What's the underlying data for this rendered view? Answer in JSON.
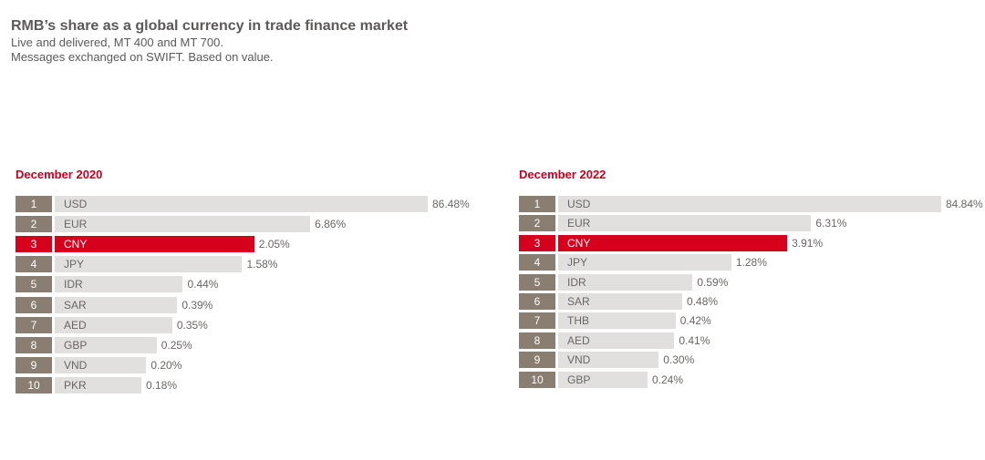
{
  "header": {
    "title": "RMB’s share as a global currency in trade finance market",
    "subtitle_line1": "Live and delivered, MT 400 and MT 700.",
    "subtitle_line2": "Messages exchanged on SWIFT. Based on value."
  },
  "colors": {
    "bar": "#e2e0df",
    "rank": "#8a7d72",
    "highlight": "#d7001c",
    "panel_title": "#c8001e",
    "text": "#6b6563"
  },
  "chart_data": [
    {
      "type": "bar",
      "orientation": "horizontal",
      "title": "December 2020",
      "highlight": "CNY",
      "ranks": [
        "1",
        "2",
        "3",
        "4",
        "5",
        "6",
        "7",
        "8",
        "9",
        "10"
      ],
      "categories": [
        "USD",
        "EUR",
        "CNY",
        "JPY",
        "IDR",
        "SAR",
        "AED",
        "GBP",
        "VND",
        "PKR"
      ],
      "values": [
        86.48,
        6.86,
        2.05,
        1.58,
        0.44,
        0.39,
        0.35,
        0.25,
        0.2,
        0.18
      ],
      "value_labels": [
        "86.48%",
        "6.86%",
        "2.05%",
        "1.58%",
        "0.44%",
        "0.39%",
        "0.35%",
        "0.25%",
        "0.20%",
        "0.18%"
      ]
    },
    {
      "type": "bar",
      "orientation": "horizontal",
      "title": "December 2022",
      "highlight": "CNY",
      "ranks": [
        "1",
        "2",
        "3",
        "4",
        "5",
        "6",
        "7",
        "8",
        "9",
        "10"
      ],
      "categories": [
        "USD",
        "EUR",
        "CNY",
        "JPY",
        "IDR",
        "SAR",
        "THB",
        "AED",
        "VND",
        "GBP"
      ],
      "values": [
        84.84,
        6.31,
        3.91,
        1.28,
        0.59,
        0.48,
        0.42,
        0.41,
        0.3,
        0.24
      ],
      "value_labels": [
        "84.84%",
        "6.31%",
        "3.91%",
        "1.28%",
        "0.59%",
        "0.48%",
        "0.42%",
        "0.41%",
        "0.30%",
        "0.24%"
      ]
    }
  ]
}
